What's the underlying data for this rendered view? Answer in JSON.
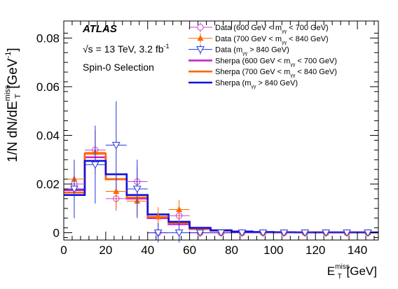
{
  "chart_data": {
    "type": "line",
    "title": "",
    "xlabel": {
      "base": "E",
      "sub": "T",
      "sup": "miss",
      "unit": " [GeV]"
    },
    "ylabel": {
      "prefix": "1/N dN/dE",
      "sub": "T",
      "sup": "miss",
      "unit": " [GeV",
      "unit_sup": "-1",
      "unit_close": "]"
    },
    "xlim": [
      0,
      150
    ],
    "ylim": [
      -0.003,
      0.087
    ],
    "x_ticks": [
      0,
      20,
      40,
      60,
      80,
      100,
      120,
      140
    ],
    "y_ticks": [
      0,
      0.02,
      0.04,
      0.06,
      0.08
    ],
    "x_tick_labels": [
      "0",
      "20",
      "40",
      "60",
      "80",
      "100",
      "120",
      "140"
    ],
    "y_tick_labels": [
      "0",
      "0.02",
      "0.04",
      "0.06",
      "0.08"
    ],
    "grid": false,
    "legend_position": "top-right",
    "annotations": {
      "experiment": "ATLAS",
      "energy_prefix": "√s = 13 TeV, 3.2 fb",
      "energy_sup": "-1",
      "selection": "Spin-0 Selection"
    },
    "bin_edges": [
      0,
      10,
      20,
      30,
      40,
      50,
      60,
      70,
      80,
      90,
      100,
      110,
      120,
      130,
      140,
      150
    ],
    "data_series": [
      {
        "name_parts": [
          "Data (600 GeV < m",
          "γγ",
          " < 700 GeV)"
        ],
        "color": "#cc44cc",
        "marker": "open-circle",
        "x": [
          5,
          15,
          25,
          35,
          45,
          55,
          65,
          75,
          85,
          95,
          105,
          115,
          125,
          135,
          145
        ],
        "y": [
          0.02,
          0.034,
          0.014,
          0.021,
          0.0,
          0.007,
          0.0,
          0.0,
          0.0,
          0.0,
          0.0,
          0.0,
          0.0,
          0.0,
          0.0
        ],
        "yerr": [
          0.006,
          0.008,
          0.005,
          0.006,
          0.002,
          0.003,
          0.001,
          0.001,
          0.001,
          0.001,
          0.001,
          0.001,
          0.001,
          0.001,
          0.001
        ]
      },
      {
        "name_parts": [
          "Data (700 GeV < m",
          "γγ",
          " < 840 GeV)"
        ],
        "color": "#ff6600",
        "marker": "filled-triangle-up",
        "x": [
          5,
          15,
          25,
          35,
          45,
          55,
          65,
          75,
          85,
          95,
          105,
          115,
          125,
          135,
          145
        ],
        "y": [
          0.022,
          0.033,
          0.017,
          0.013,
          0.0065,
          0.0095,
          0.0,
          0.0,
          0.0,
          0.0,
          0.0,
          0.0,
          0.0,
          0.0,
          0.0
        ],
        "yerr": [
          0.007,
          0.009,
          0.007,
          0.006,
          0.004,
          0.004,
          0.001,
          0.001,
          0.001,
          0.001,
          0.001,
          0.001,
          0.001,
          0.001,
          0.001
        ]
      },
      {
        "name_parts": [
          "Data (m",
          "γγ",
          " > 840 GeV)"
        ],
        "color": "#2233dd",
        "marker": "open-triangle-down",
        "x": [
          5,
          15,
          25,
          35,
          45,
          55,
          65,
          75,
          85,
          95,
          105,
          115,
          125,
          135,
          145
        ],
        "y": [
          0.018,
          0.028,
          0.036,
          0.018,
          0.0,
          0.0,
          0.0,
          0.0,
          0.0,
          0.0,
          0.0,
          0.0,
          0.0,
          0.0,
          0.0
        ],
        "yerr": [
          0.012,
          0.016,
          0.018,
          0.012,
          0.004,
          0.004,
          0.001,
          0.001,
          0.001,
          0.001,
          0.001,
          0.001,
          0.001,
          0.001,
          0.001
        ]
      }
    ],
    "hist_series": [
      {
        "name_parts": [
          "Sherpa (600 GeV < m",
          "γγ",
          " < 700 GeV)"
        ],
        "color": "#cc22cc",
        "values": [
          0.0175,
          0.031,
          0.022,
          0.014,
          0.006,
          0.0035,
          0.0015,
          0.0008,
          0.0004,
          0.0002,
          0.0001,
          0.0001,
          0.0001,
          0.0001,
          0.0001
        ]
      },
      {
        "name_parts": [
          "Sherpa (700 GeV < m",
          "γγ",
          " < 840 GeV)"
        ],
        "color": "#ff6600",
        "values": [
          0.0165,
          0.0325,
          0.022,
          0.0145,
          0.0065,
          0.004,
          0.0017,
          0.0009,
          0.0005,
          0.0002,
          0.0001,
          0.0001,
          0.0001,
          0.0001,
          0.0001
        ]
      },
      {
        "name_parts": [
          "Sherpa (m",
          "γγ",
          " > 840 GeV)"
        ],
        "color": "#1111dd",
        "values": [
          0.0155,
          0.0295,
          0.024,
          0.0155,
          0.0075,
          0.0045,
          0.002,
          0.001,
          0.0005,
          0.0003,
          0.0002,
          0.0001,
          0.0001,
          0.0001,
          0.0001
        ]
      }
    ]
  }
}
